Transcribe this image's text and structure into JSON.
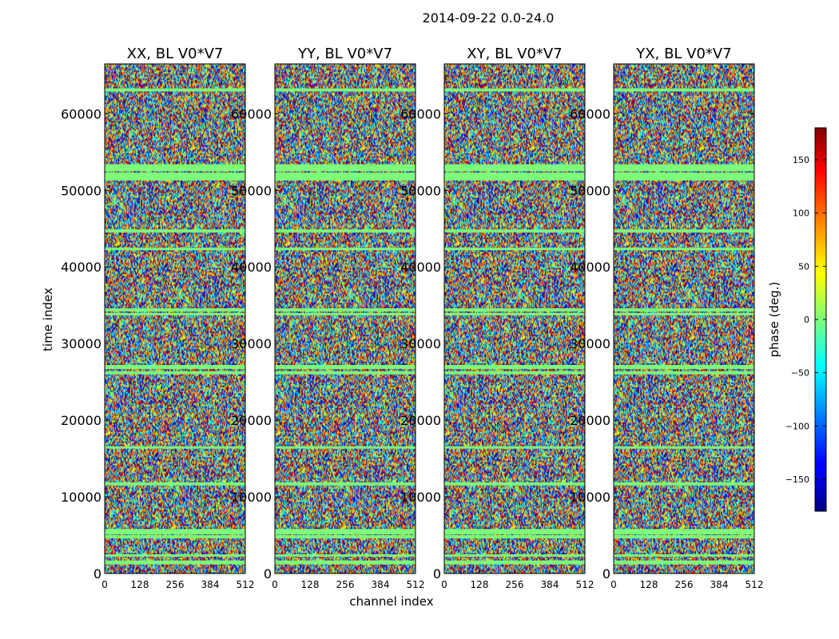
{
  "chart_data": {
    "type": "heatmap",
    "suptitle": "2014-09-22 0.0-24.0",
    "xlabel": "channel index",
    "ylabel": "time index",
    "panels": [
      {
        "title": "XX, BL V0*V7"
      },
      {
        "title": "YY, BL V0*V7"
      },
      {
        "title": "XY, BL V0*V7"
      },
      {
        "title": "YX, BL V0*V7"
      }
    ],
    "xlim": [
      0,
      512
    ],
    "xticks": [
      0,
      128,
      256,
      384,
      512
    ],
    "ylim": [
      0,
      66500
    ],
    "yticks": [
      0,
      10000,
      20000,
      30000,
      40000,
      50000,
      60000
    ],
    "colorbar": {
      "label": "phase (deg.)",
      "range": [
        -180,
        180
      ],
      "ticks": [
        -150,
        -100,
        -50,
        0,
        50,
        100,
        150
      ],
      "colormap": "jet"
    },
    "flagged_time_bands": [
      [
        1200,
        1700
      ],
      [
        2200,
        2500
      ],
      [
        4600,
        5000
      ],
      [
        5100,
        5800
      ],
      [
        11500,
        11900
      ],
      [
        16300,
        16600
      ],
      [
        26000,
        26400
      ],
      [
        26700,
        27200
      ],
      [
        33700,
        34000
      ],
      [
        34200,
        34600
      ],
      [
        42200,
        42500
      ],
      [
        44500,
        44900
      ],
      [
        51300,
        52300
      ],
      [
        52500,
        53400
      ],
      [
        62900,
        63300
      ]
    ],
    "notes": "phase values appear random (noise) across all channels and times"
  }
}
